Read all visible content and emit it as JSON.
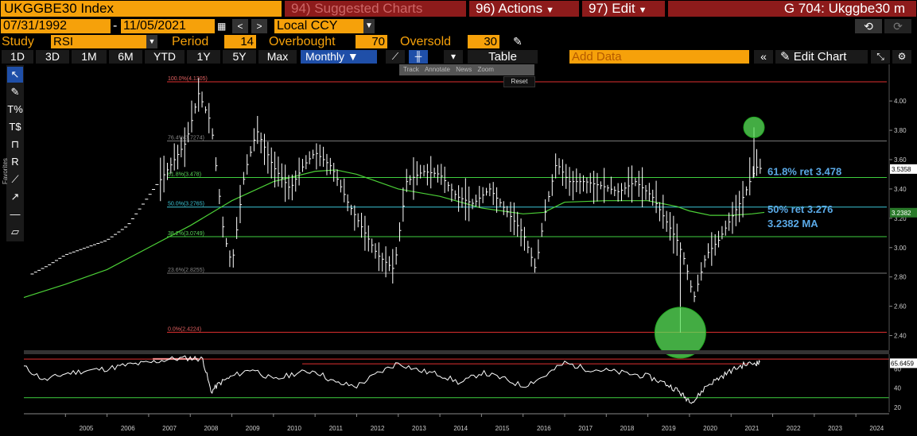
{
  "header": {
    "ticker": "UKGGBE30 Index",
    "suggested": "94) Suggested Charts",
    "actions": "96) Actions",
    "edit": "97) Edit",
    "title": "G 704: Ukggbe30 m"
  },
  "range": {
    "start": "07/31/1992",
    "sep": "-",
    "end": "11/05/2021",
    "currency": "Local CCY"
  },
  "study": {
    "label": "Study",
    "value": "RSI",
    "period_label": "Period",
    "period": "14",
    "overbought_label": "Overbought",
    "overbought": "70",
    "oversold_label": "Oversold",
    "oversold": "30"
  },
  "toolbar": {
    "timeframes": [
      "1D",
      "3D",
      "1M",
      "6M",
      "YTD",
      "1Y",
      "5Y",
      "Max"
    ],
    "frequency": "Monthly",
    "table": "Table",
    "add_data_placeholder": "Add Data",
    "edit_chart": "Edit Chart"
  },
  "mini_tools": [
    "Track",
    "Annotate",
    "News",
    "Zoom"
  ],
  "reset": "Reset",
  "left_tools": {
    "favorites": "Favorites"
  },
  "colors": {
    "accent": "#f6a10a",
    "menu": "#8d1b1b",
    "price": "#ffffff",
    "ma": "#4cd137",
    "fib_label": "#5aa9e6",
    "red_line": "#e03030",
    "fib_green": "#3fcf3f",
    "fib_cyan": "#3cc6d6"
  },
  "chart_data": {
    "type": "line",
    "title": "",
    "xlabel": "",
    "ylabel": "",
    "x_ticks": [
      "2005",
      "2006",
      "2007",
      "2008",
      "2009",
      "2010",
      "2011",
      "2012",
      "2013",
      "2014",
      "2015",
      "2016",
      "2017",
      "2018",
      "2019",
      "2020",
      "2021",
      "2022",
      "2023",
      "2024"
    ],
    "y_ticks": [
      "4.00",
      "3.80",
      "3.60",
      "3.40",
      "3.20",
      "3.00",
      "2.80",
      "2.60",
      "2.40"
    ],
    "ylim": [
      2.3,
      4.25
    ],
    "price_series": {
      "x": [
        2004.2,
        2004.6,
        2005.0,
        2005.5,
        2006.0,
        2006.5,
        2007.0,
        2007.5,
        2007.9,
        2008.2,
        2008.5,
        2008.8,
        2009.0,
        2009.3,
        2009.6,
        2010.0,
        2010.4,
        2010.7,
        2011.0,
        2011.4,
        2011.8,
        2012.1,
        2012.5,
        2012.9,
        2013.2,
        2013.6,
        2014.0,
        2014.4,
        2014.8,
        2015.2,
        2015.6,
        2016.0,
        2016.3,
        2016.5,
        2016.8,
        2017.1,
        2017.5,
        2017.9,
        2018.3,
        2018.7,
        2019.1,
        2019.4,
        2019.7,
        2019.9,
        2020.1,
        2020.4,
        2020.7,
        2021.0,
        2021.3,
        2021.6,
        2021.7
      ],
      "y": [
        2.82,
        2.88,
        2.95,
        3.0,
        3.05,
        3.15,
        3.35,
        3.55,
        3.72,
        4.05,
        3.85,
        3.1,
        2.88,
        3.5,
        3.8,
        3.55,
        3.4,
        3.55,
        3.65,
        3.55,
        3.3,
        3.15,
        2.95,
        2.85,
        3.45,
        3.52,
        3.5,
        3.35,
        3.3,
        3.4,
        3.25,
        3.1,
        2.85,
        3.2,
        3.58,
        3.45,
        3.45,
        3.42,
        3.38,
        3.45,
        3.35,
        3.2,
        3.05,
        2.9,
        2.65,
        2.95,
        3.05,
        3.2,
        3.35,
        3.55,
        3.54
      ]
    },
    "ma_series": {
      "name": "3.2382 MA",
      "x": [
        2004.0,
        2005.0,
        2006.0,
        2007.0,
        2008.0,
        2009.0,
        2010.0,
        2011.0,
        2011.5,
        2012.0,
        2013.0,
        2014.0,
        2015.0,
        2016.0,
        2016.5,
        2017.0,
        2018.0,
        2019.0,
        2019.7,
        2020.0,
        2020.5,
        2021.0,
        2021.5,
        2021.8
      ],
      "y": [
        2.66,
        2.75,
        2.85,
        3.0,
        3.15,
        3.32,
        3.45,
        3.52,
        3.53,
        3.5,
        3.4,
        3.35,
        3.27,
        3.23,
        3.24,
        3.31,
        3.32,
        3.32,
        3.28,
        3.25,
        3.22,
        3.22,
        3.23,
        3.24
      ]
    },
    "fib_levels": [
      {
        "label": "100.0%(4.1305)",
        "value": 4.1305
      },
      {
        "label": "76.4%(3.7274)",
        "value": 3.7274
      },
      {
        "label": "61.8%(3.478)",
        "value": 3.478
      },
      {
        "label": "50.0%(3.2765)",
        "value": 3.2765
      },
      {
        "label": "38.2%(3.0749)",
        "value": 3.0749
      },
      {
        "label": "23.6%(2.8255)",
        "value": 2.8255
      },
      {
        "label": "0.0%(2.4224)",
        "value": 2.4224
      }
    ],
    "annotations": [
      {
        "text": "61.8% ret 3.478"
      },
      {
        "text": "50% ret 3.276"
      },
      {
        "text": "3.2382 MA"
      }
    ],
    "last_price_label": "3.5358",
    "ma_value_label": "3.2382",
    "rsi": {
      "last_label": "65.6459",
      "y_ticks": [
        "60",
        "40",
        "20"
      ],
      "ylim": [
        15,
        75
      ],
      "x": [
        2004.0,
        2004.5,
        2005.0,
        2005.5,
        2006.0,
        2006.5,
        2007.0,
        2007.5,
        2008.0,
        2008.3,
        2008.5,
        2008.7,
        2009.0,
        2009.5,
        2010.0,
        2010.5,
        2011.0,
        2011.5,
        2012.0,
        2012.5,
        2013.0,
        2013.5,
        2014.0,
        2014.5,
        2015.0,
        2015.5,
        2016.0,
        2016.5,
        2017.0,
        2017.5,
        2018.0,
        2018.5,
        2019.0,
        2019.4,
        2019.7,
        2019.9,
        2020.1,
        2020.4,
        2020.7,
        2021.0,
        2021.3,
        2021.6,
        2021.7
      ],
      "y": [
        62,
        48,
        55,
        58,
        60,
        64,
        66,
        70,
        71,
        70,
        36,
        45,
        52,
        60,
        48,
        55,
        58,
        45,
        42,
        55,
        66,
        58,
        54,
        45,
        56,
        50,
        42,
        52,
        66,
        60,
        58,
        55,
        52,
        45,
        38,
        30,
        26,
        42,
        50,
        58,
        64,
        66,
        66
      ]
    }
  }
}
